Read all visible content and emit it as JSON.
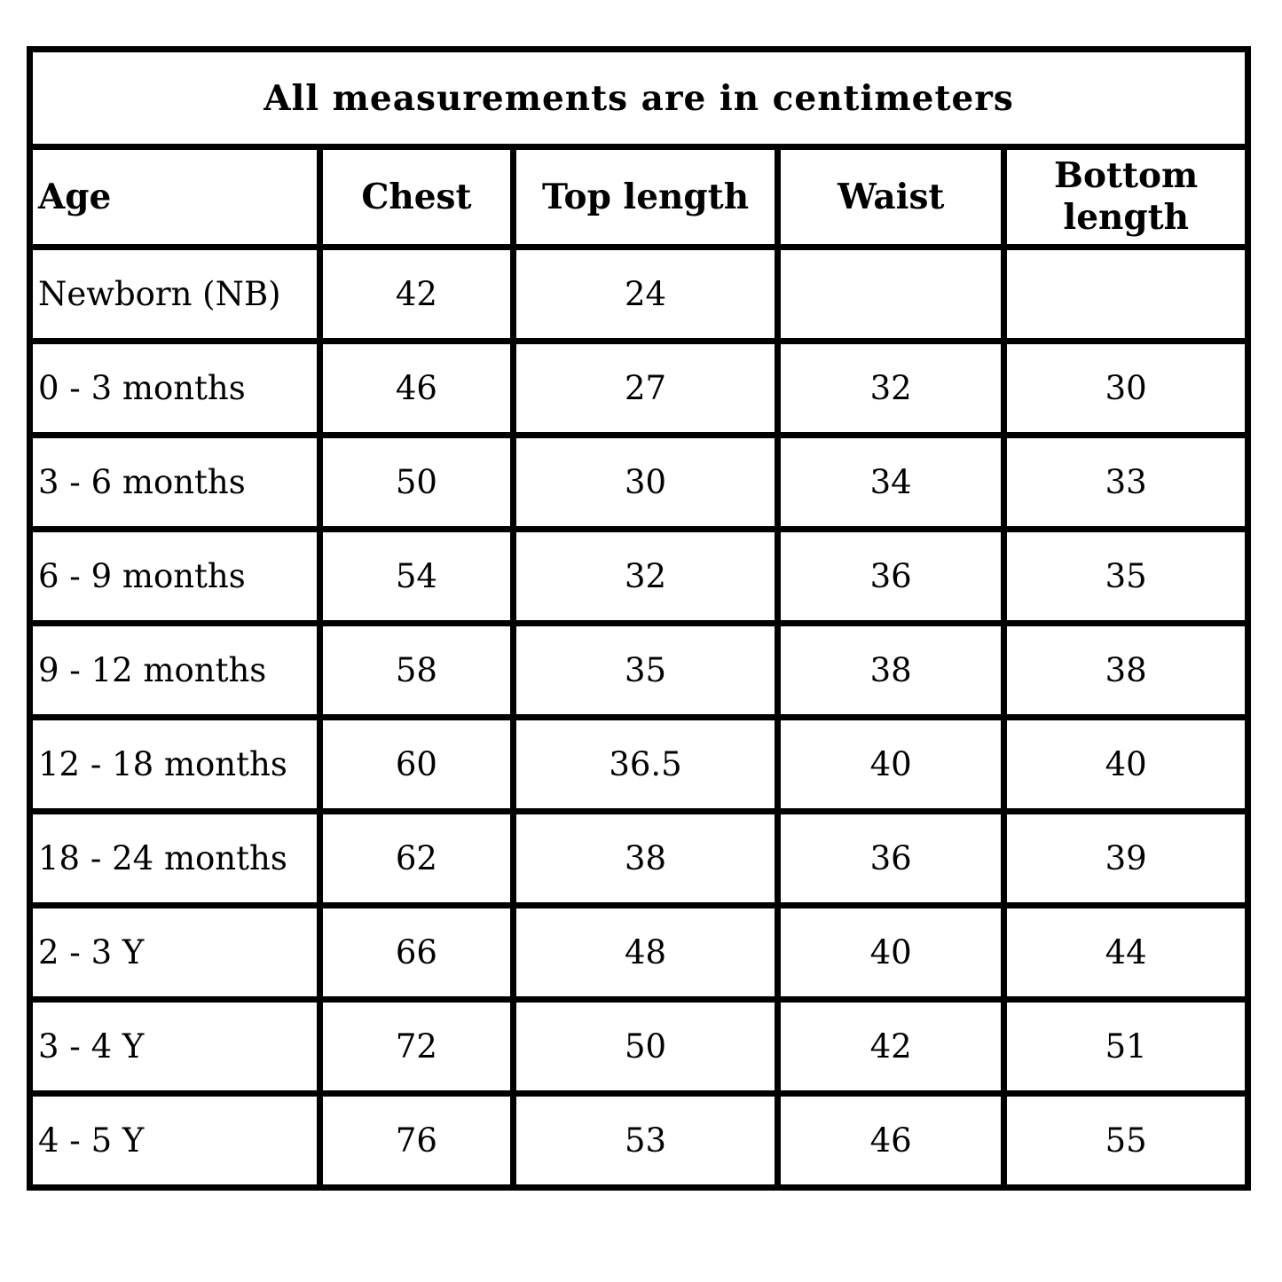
{
  "chart_data": {
    "type": "table",
    "title": "All measurements are in centimeters",
    "unit": "centimeters",
    "columns": [
      "Age",
      "Chest",
      "Top length",
      "Waist",
      "Bottom length"
    ],
    "rows": [
      [
        "Newborn (NB)",
        "42",
        "24",
        "",
        ""
      ],
      [
        "0 - 3 months",
        "46",
        "27",
        "32",
        "30"
      ],
      [
        "3 - 6 months",
        "50",
        "30",
        "34",
        "33"
      ],
      [
        "6 - 9 months",
        "54",
        "32",
        "36",
        "35"
      ],
      [
        "9 - 12 months",
        "58",
        "35",
        "38",
        "38"
      ],
      [
        "12 - 18 months",
        "60",
        "36.5",
        "40",
        "40"
      ],
      [
        "18 - 24 months",
        "62",
        "38",
        "36",
        "39"
      ],
      [
        "2 - 3 Y",
        "66",
        "48",
        "40",
        "44"
      ],
      [
        "3 - 4 Y",
        "72",
        "50",
        "42",
        "51"
      ],
      [
        "4 - 5 Y",
        "76",
        "53",
        "46",
        "55"
      ]
    ],
    "layout": {
      "grid": true,
      "border_color": "#000000",
      "background_color": "#ffffff",
      "text_color": "#000000"
    }
  }
}
